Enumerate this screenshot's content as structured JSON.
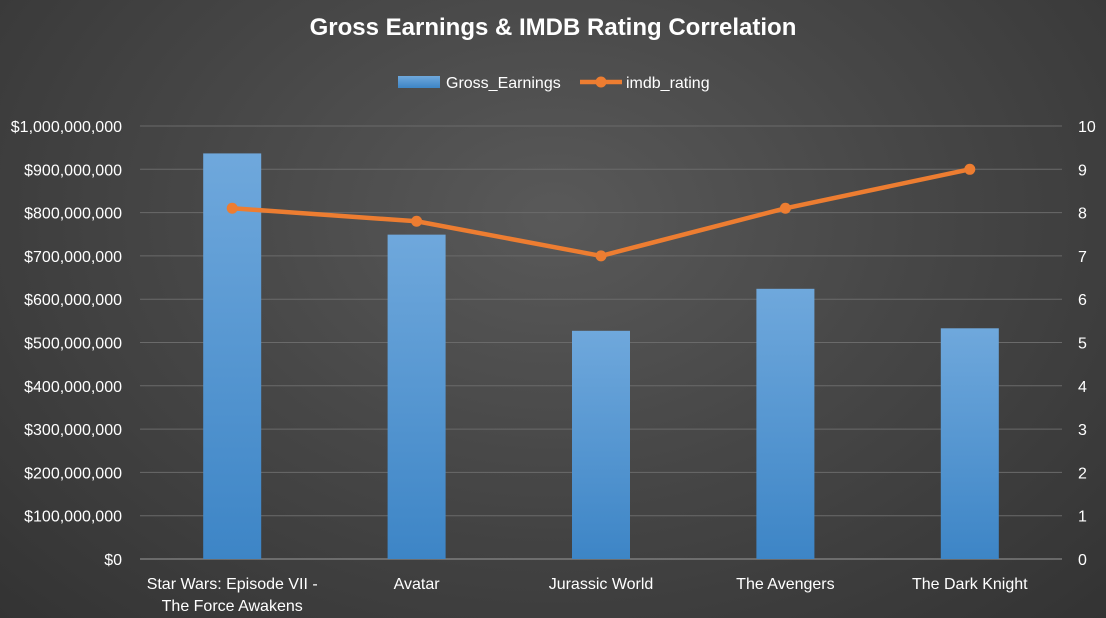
{
  "chart_data": {
    "type": "bar",
    "title": "Gross Earnings & IMDB Rating Correlation",
    "xlabel": "",
    "ylabel": "",
    "categories": [
      [
        "Star Wars: Episode VII -",
        "The Force Awakens"
      ],
      [
        "Avatar"
      ],
      [
        "Jurassic World"
      ],
      [
        "The Avengers"
      ],
      [
        "The Dark Knight"
      ]
    ],
    "series": [
      {
        "name": "Gross_Earnings",
        "type": "bar",
        "axis": "left",
        "color": "#5b9bd5",
        "values": [
          936700000,
          749100000,
          527000000,
          624000000,
          532800000
        ]
      },
      {
        "name": "imdb_rating",
        "type": "line",
        "axis": "right",
        "color": "#ed7d31",
        "values": [
          8.1,
          7.8,
          7.0,
          8.1,
          9.0
        ]
      }
    ],
    "y_left": {
      "min": 0,
      "max": 1000000000,
      "tick_labels": [
        "$0",
        "$100,000,000",
        "$200,000,000",
        "$300,000,000",
        "$400,000,000",
        "$500,000,000",
        "$600,000,000",
        "$700,000,000",
        "$800,000,000",
        "$900,000,000",
        "$1,000,000,000"
      ]
    },
    "y_right": {
      "min": 0,
      "max": 10,
      "tick_labels": [
        "0",
        "1",
        "2",
        "3",
        "4",
        "5",
        "6",
        "7",
        "8",
        "9",
        "10"
      ]
    },
    "grid": true,
    "legend_position": "top-center"
  }
}
